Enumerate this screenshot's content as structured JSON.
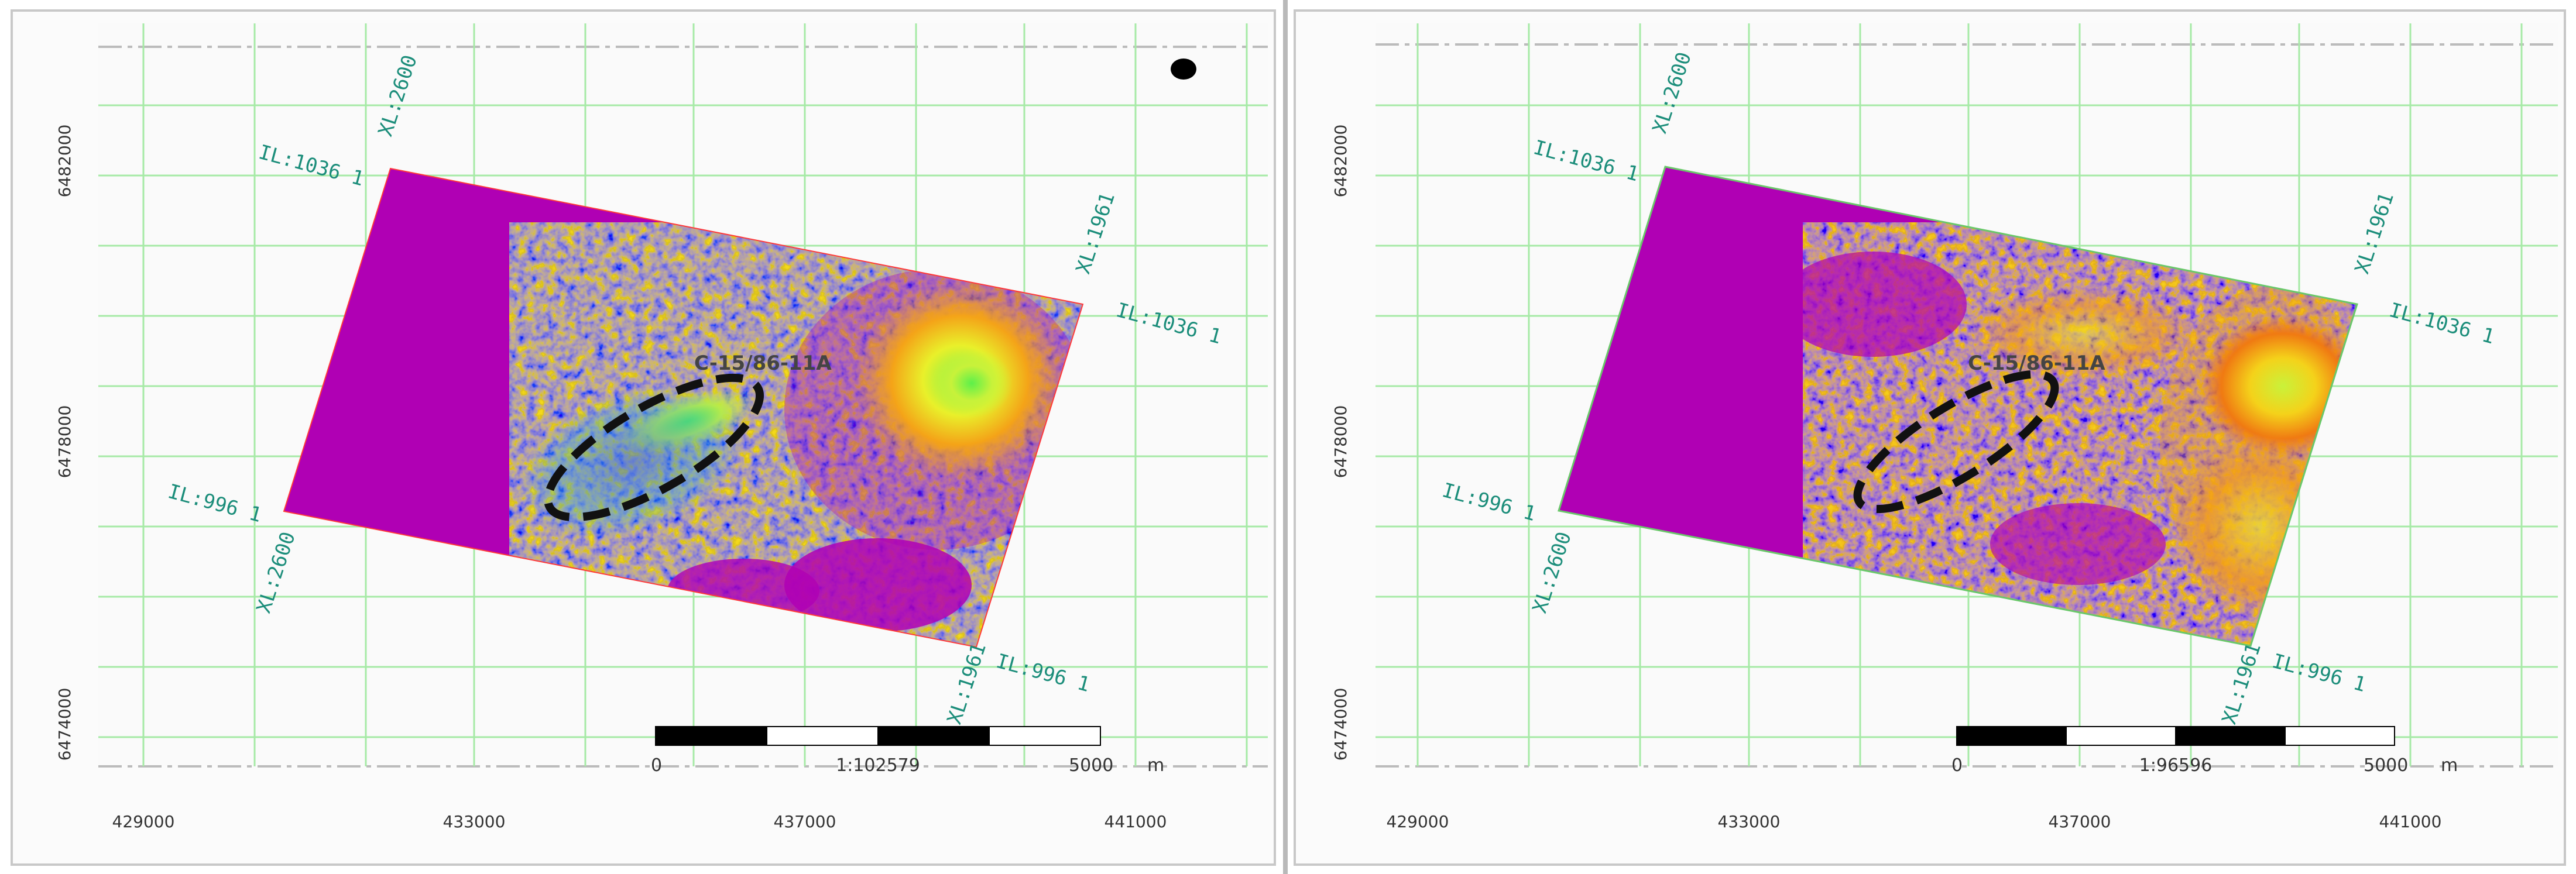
{
  "maps": [
    {
      "id": "left",
      "x_ticks": [
        "429000",
        "433000",
        "437000",
        "441000"
      ],
      "y_ticks": [
        "6482000",
        "6478000",
        "6474000"
      ],
      "corners": {
        "il_top": "IL:1036 1",
        "xl_top": "XL:2600",
        "xl_right": "XL:1961",
        "il_right": "IL:1036 1",
        "il_left": "IL:996 1",
        "xl_left": "XL:2600",
        "xl_bottom": "XL:1961",
        "il_bottom": "IL:996 1"
      },
      "well_label": "C-15/86-11A",
      "scale": {
        "zero": "0",
        "ratio": "1:102579",
        "max": "5000",
        "unit": "m"
      },
      "north_dot": true
    },
    {
      "id": "right",
      "x_ticks": [
        "429000",
        "433000",
        "437000",
        "441000"
      ],
      "y_ticks": [
        "6482000",
        "6478000",
        "6474000"
      ],
      "corners": {
        "il_top": "IL:1036 1",
        "xl_top": "XL:2600",
        "xl_right": "XL:1961",
        "il_right": "IL:1036 1",
        "il_left": "IL:996 1",
        "xl_left": "XL:2600",
        "xl_bottom": "XL:1961",
        "il_bottom": "IL:996 1"
      },
      "well_label": "C-15/86-11A",
      "scale": {
        "zero": "0",
        "ratio": "1:96596",
        "max": "5000",
        "unit": "m"
      },
      "north_dot": false
    }
  ],
  "colors": {
    "background_magenta": "#b000b4",
    "grid_green": "#a6eaa6",
    "label_teal": "#1b8d7a",
    "ellipse": "#111111"
  }
}
